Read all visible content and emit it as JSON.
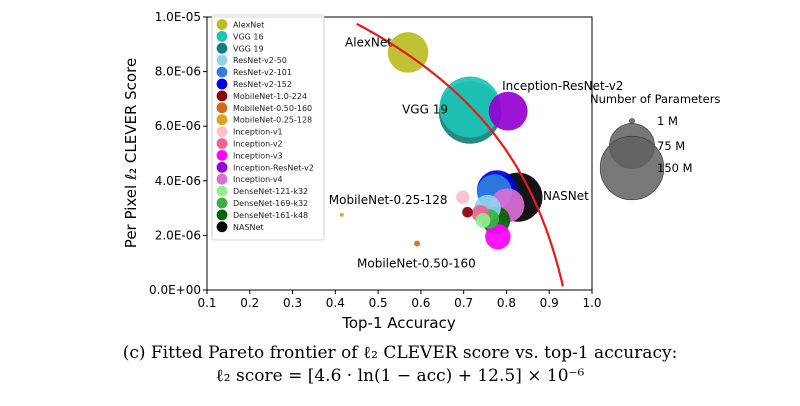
{
  "chart_data": {
    "type": "scatter",
    "title": "",
    "xlabel": "Top-1 Accuracy",
    "ylabel": "Per Pixel ℓ₂ CLEVER Score",
    "xlim": [
      0.1,
      1.0
    ],
    "ylim": [
      0.0,
      1e-05
    ],
    "xticks": [
      "0.1",
      "0.2",
      "0.3",
      "0.4",
      "0.5",
      "0.6",
      "0.7",
      "0.8",
      "0.9",
      "1.0"
    ],
    "yticks": [
      "0.0E+00",
      "2.0E-06",
      "4.0E-06",
      "6.0E-06",
      "8.0E-06",
      "1.0E-05"
    ],
    "grid": false,
    "legend_position": "top-left",
    "series": [
      {
        "name": "AlexNet",
        "color": "#bcbd22",
        "params_m": 61,
        "x": 0.57,
        "y": 8.7e-06
      },
      {
        "name": "VGG 16",
        "color": "#1cc3b6",
        "params_m": 138,
        "x": 0.715,
        "y": 6.7e-06
      },
      {
        "name": "VGG 19",
        "color": "#12807a",
        "params_m": 144,
        "x": 0.715,
        "y": 6.5e-06
      },
      {
        "name": "ResNet-v2-50",
        "color": "#8fd3ee",
        "params_m": 26,
        "x": 0.756,
        "y": 3e-06
      },
      {
        "name": "ResNet-v2-101",
        "color": "#2f7fe0",
        "params_m": 45,
        "x": 0.772,
        "y": 3.6e-06
      },
      {
        "name": "ResNet-v2-152",
        "color": "#0000e0",
        "params_m": 60,
        "x": 0.778,
        "y": 3.65e-06
      },
      {
        "name": "MobileNet-1.0-224",
        "color": "#8b0000",
        "params_m": 4.2,
        "x": 0.709,
        "y": 2.85e-06
      },
      {
        "name": "MobileNet-0.50-160",
        "color": "#d2691e",
        "params_m": 1.3,
        "x": 0.591,
        "y": 1.7e-06
      },
      {
        "name": "MobileNet-0.25-128",
        "color": "#daa520",
        "params_m": 0.5,
        "x": 0.415,
        "y": 2.75e-06
      },
      {
        "name": "Inception-v1",
        "color": "#ffc0cb",
        "params_m": 6.6,
        "x": 0.698,
        "y": 3.4e-06
      },
      {
        "name": "Inception-v2",
        "color": "#f06292",
        "params_m": 11,
        "x": 0.739,
        "y": 2.8e-06
      },
      {
        "name": "Inception-v3",
        "color": "#ff00ff",
        "params_m": 24,
        "x": 0.78,
        "y": 1.95e-06
      },
      {
        "name": "Inception-ResNet-v2",
        "color": "#9400d3",
        "params_m": 56,
        "x": 0.804,
        "y": 6.55e-06
      },
      {
        "name": "Inception-v4",
        "color": "#da70d6",
        "params_m": 43,
        "x": 0.802,
        "y": 3.1e-06
      },
      {
        "name": "DenseNet-121-k32",
        "color": "#90ee90",
        "params_m": 8,
        "x": 0.745,
        "y": 2.55e-06
      },
      {
        "name": "DenseNet-169-k32",
        "color": "#3cb043",
        "params_m": 14,
        "x": 0.76,
        "y": 2.6e-06
      },
      {
        "name": "DenseNet-161-k48",
        "color": "#006400",
        "params_m": 29,
        "x": 0.776,
        "y": 2.55e-06
      },
      {
        "name": "NASNet",
        "color": "#000000",
        "params_m": 89,
        "x": 0.827,
        "y": 3.4e-06
      }
    ],
    "annotations": [
      {
        "text": "AlexNet",
        "x": 0.57,
        "y": 8.7e-06
      },
      {
        "text": "VGG 19",
        "x": 0.715,
        "y": 6.5e-06
      },
      {
        "text": "Inception-ResNet-v2",
        "x": 0.804,
        "y": 6.55e-06
      },
      {
        "text": "MobileNet-0.25-128",
        "x": 0.415,
        "y": 2.75e-06
      },
      {
        "text": "NASNet",
        "x": 0.827,
        "y": 3.4e-06
      },
      {
        "text": "MobileNet-0.50-160",
        "x": 0.591,
        "y": 1.7e-06
      }
    ],
    "pareto_frontier": {
      "color": "#e41a1c",
      "a": 4.6,
      "b": 12.5,
      "scale": 1e-06
    },
    "size_legend": {
      "title": "Number of Parameters",
      "entries": [
        {
          "label": "1 M",
          "params_m": 1
        },
        {
          "label": "75 M",
          "params_m": 75
        },
        {
          "label": "150 M",
          "params_m": 150
        }
      ]
    }
  },
  "caption": {
    "line1": "(c) Fitted Pareto frontier of ℓ₂ CLEVER score vs. top-1 accuracy:",
    "line2": "ℓ₂ score = [4.6 · ln(1 − acc) + 12.5] × 10⁻⁶"
  }
}
